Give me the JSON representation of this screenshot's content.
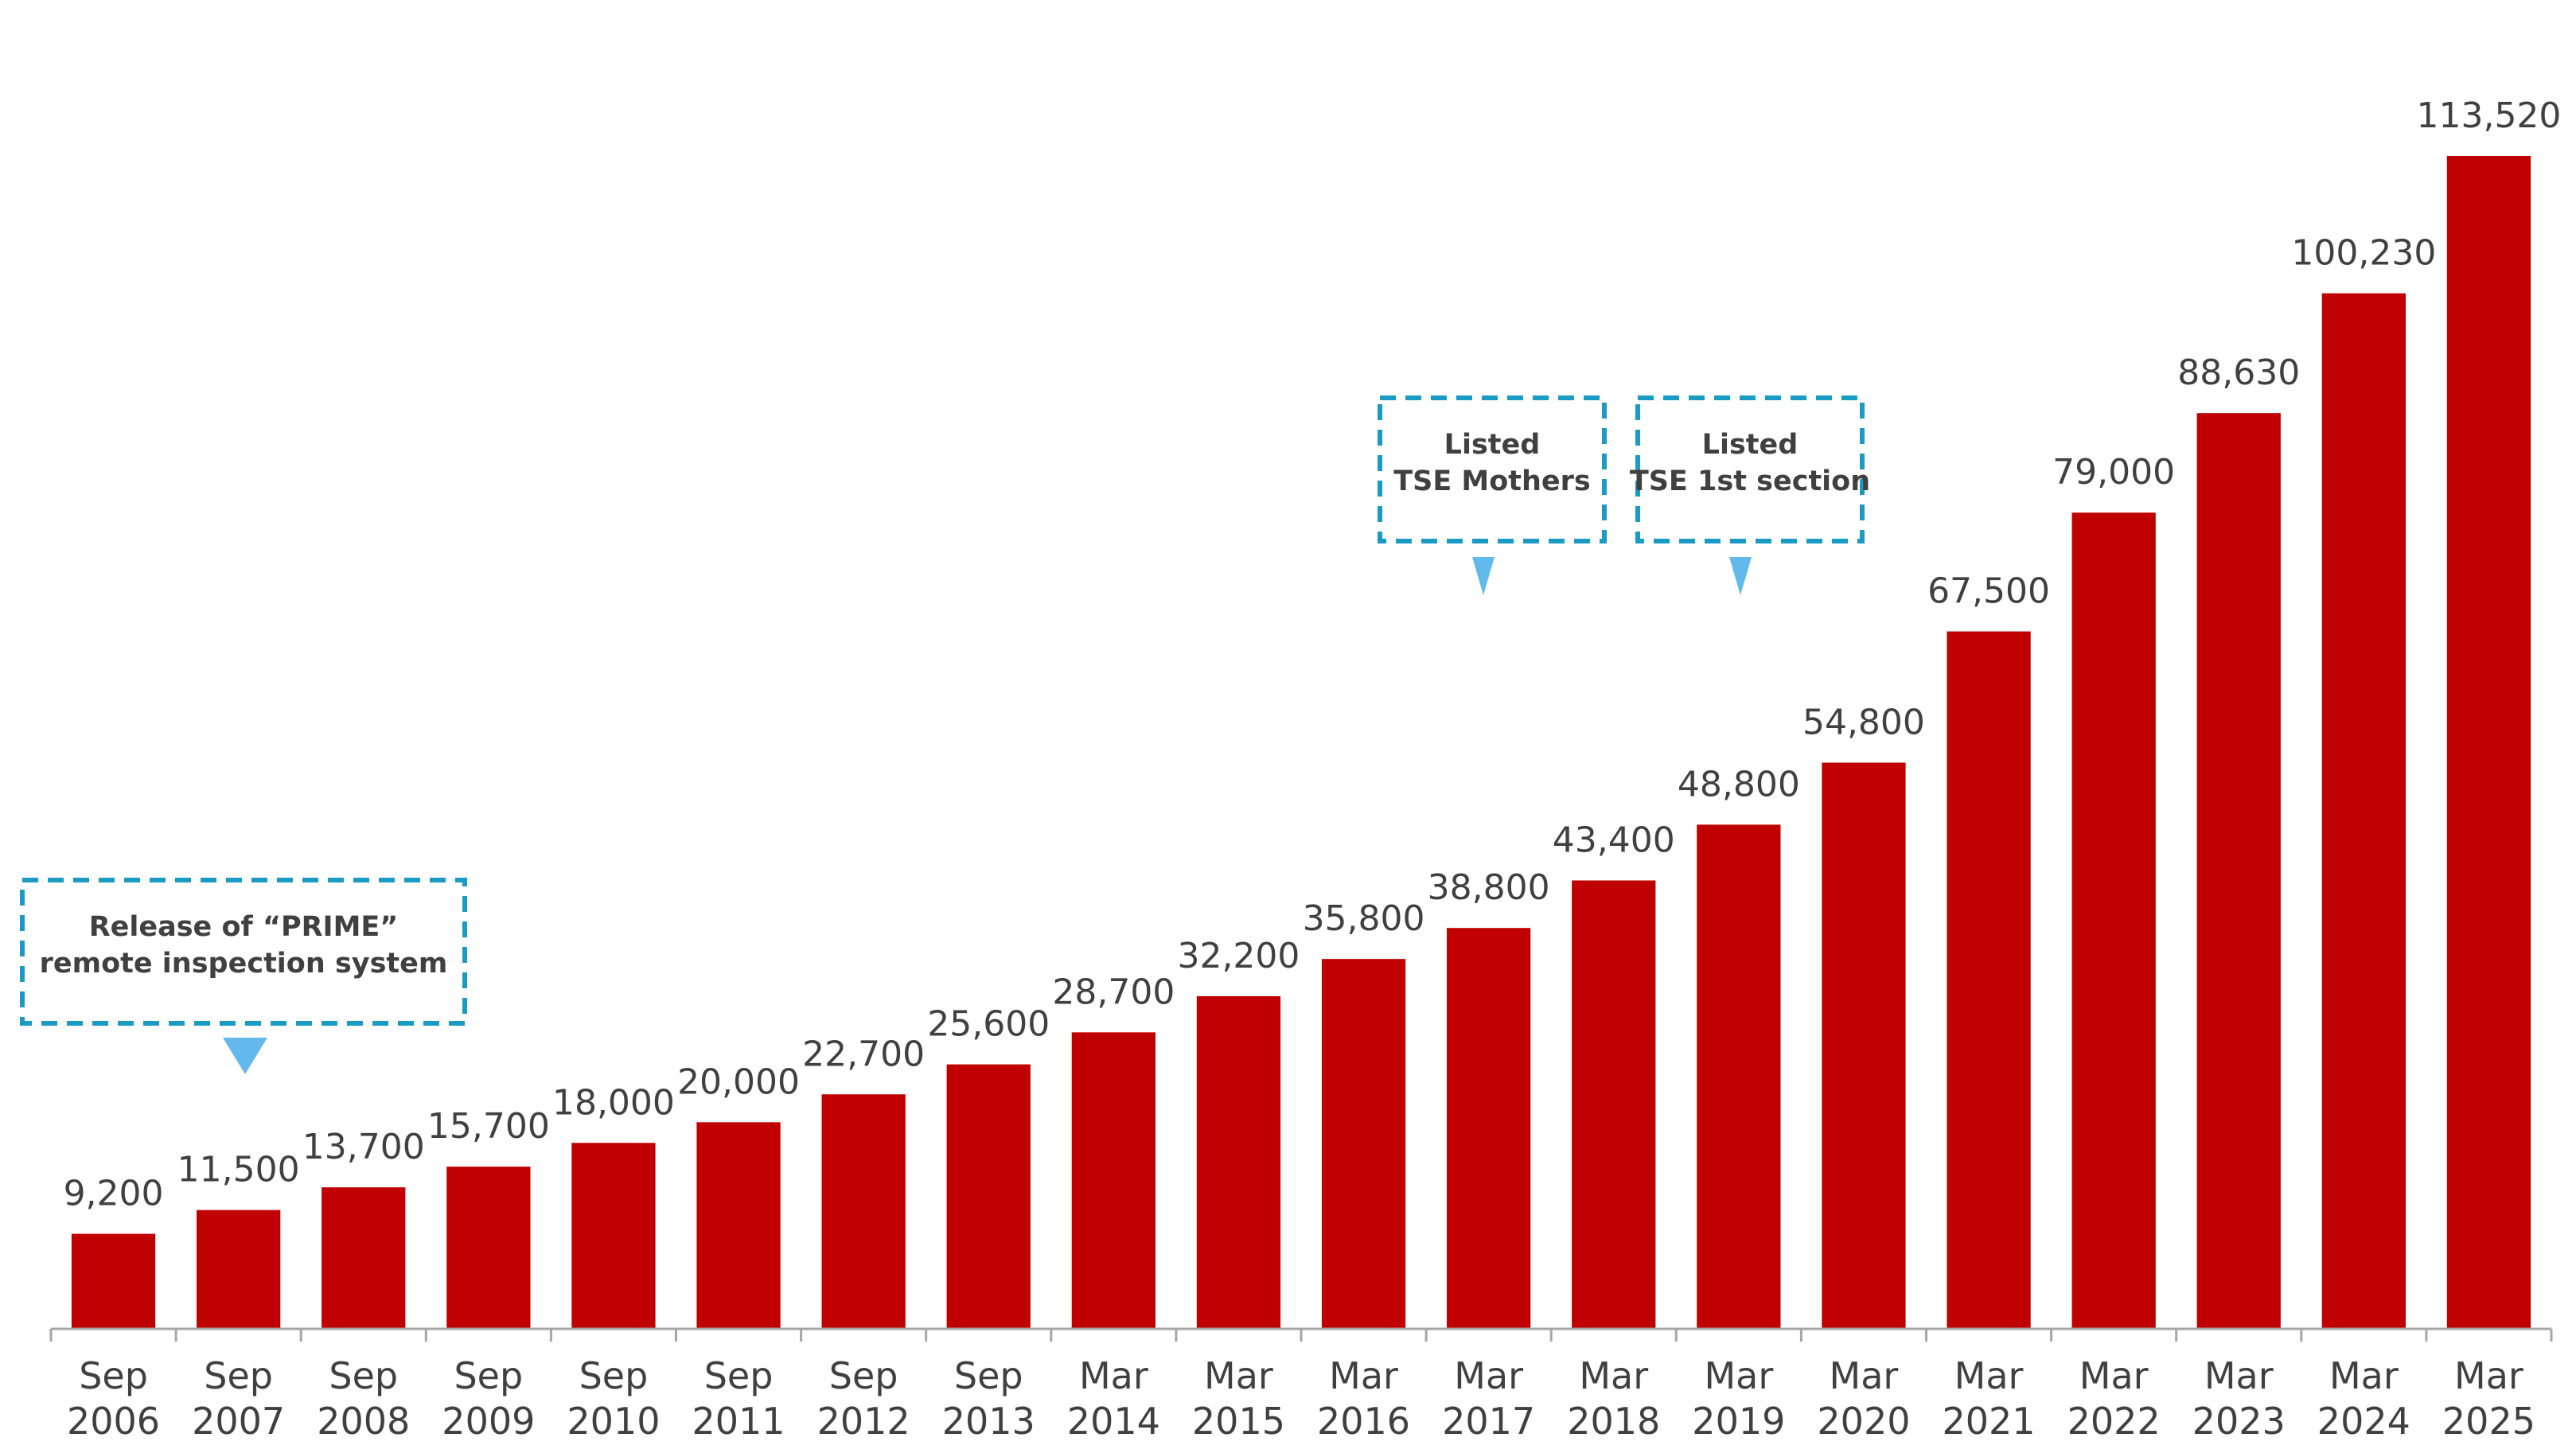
{
  "chart_data": {
    "type": "bar",
    "categories": [
      [
        "Sep",
        "2006"
      ],
      [
        "Sep",
        "2007"
      ],
      [
        "Sep",
        "2008"
      ],
      [
        "Sep",
        "2009"
      ],
      [
        "Sep",
        "2010"
      ],
      [
        "Sep",
        "2011"
      ],
      [
        "Sep",
        "2012"
      ],
      [
        "Sep",
        "2013"
      ],
      [
        "Mar",
        "2014"
      ],
      [
        "Mar",
        "2015"
      ],
      [
        "Mar",
        "2016"
      ],
      [
        "Mar",
        "2017"
      ],
      [
        "Mar",
        "2018"
      ],
      [
        "Mar",
        "2019"
      ],
      [
        "Mar",
        "2020"
      ],
      [
        "Mar",
        "2021"
      ],
      [
        "Mar",
        "2022"
      ],
      [
        "Mar",
        "2023"
      ],
      [
        "Mar",
        "2024"
      ],
      [
        "Mar",
        "2025"
      ]
    ],
    "values": [
      9200,
      11500,
      13700,
      15700,
      18000,
      20000,
      22700,
      25600,
      28700,
      32200,
      35800,
      38800,
      43400,
      48800,
      54800,
      67500,
      79000,
      88630,
      100230,
      113520
    ],
    "value_labels": [
      "9,200",
      "11,500",
      "13,700",
      "15,700",
      "18,000",
      "20,000",
      "22,700",
      "25,600",
      "28,700",
      "32,200",
      "35,800",
      "38,800",
      "43,400",
      "48,800",
      "54,800",
      "67,500",
      "79,000",
      "88,630",
      "100,230",
      "113,520"
    ],
    "ylim": [
      0,
      120000
    ],
    "bar_color": "#c00000",
    "grid": false,
    "legend": "none",
    "annotations": [
      {
        "lines": [
          "Release of “PRIME”",
          "remote inspection system"
        ],
        "category_index": 1
      },
      {
        "lines": [
          "Listed",
          "TSE Mothers"
        ],
        "category_index": 11
      },
      {
        "lines": [
          "Listed",
          "TSE 1st section"
        ],
        "category_index": 13
      }
    ],
    "annotation_border_color": "#1a9bc4",
    "annotation_arrow_color": "#63b9ec"
  }
}
